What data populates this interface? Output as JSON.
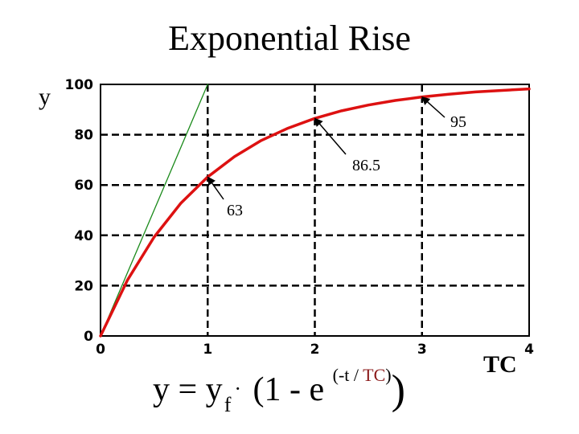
{
  "title": "Exponential Rise",
  "y_label": "y",
  "x_label": "TC",
  "formula": {
    "y": "y",
    "eq": " = y",
    "sub_f": "f",
    "dot": "·",
    "body": " (1 - e ",
    "exp_open": "(-t / ",
    "exp_tc": "TC",
    "exp_close": ")",
    "close": ")"
  },
  "chart_data": {
    "type": "line",
    "title": "Exponential Rise",
    "xlabel": "TC",
    "ylabel": "y",
    "xlim": [
      0,
      4
    ],
    "ylim": [
      0,
      100
    ],
    "x_ticks": [
      0,
      1,
      2,
      3,
      4
    ],
    "y_ticks": [
      0,
      20,
      40,
      60,
      80,
      100
    ],
    "grid": true,
    "series": [
      {
        "color": "#dd1111",
        "x": [
          0,
          0.25,
          0.5,
          0.75,
          1,
          1.25,
          1.5,
          1.75,
          2,
          2.25,
          2.5,
          2.75,
          3,
          3.25,
          3.5,
          3.75,
          4
        ],
        "y": [
          0,
          22.1,
          39.3,
          52.8,
          63.2,
          71.3,
          77.7,
          82.6,
          86.5,
          89.5,
          91.8,
          93.6,
          95.0,
          96.1,
          97.0,
          97.6,
          98.2
        ]
      },
      {
        "color": "#1a8a1a",
        "x": [
          0,
          1
        ],
        "y": [
          0,
          100
        ]
      }
    ],
    "annotations": [
      {
        "label": "63",
        "x": 1,
        "y": 63.2
      },
      {
        "label": "86.5",
        "x": 2,
        "y": 86.5
      },
      {
        "label": "95",
        "x": 3,
        "y": 95.0
      }
    ]
  }
}
